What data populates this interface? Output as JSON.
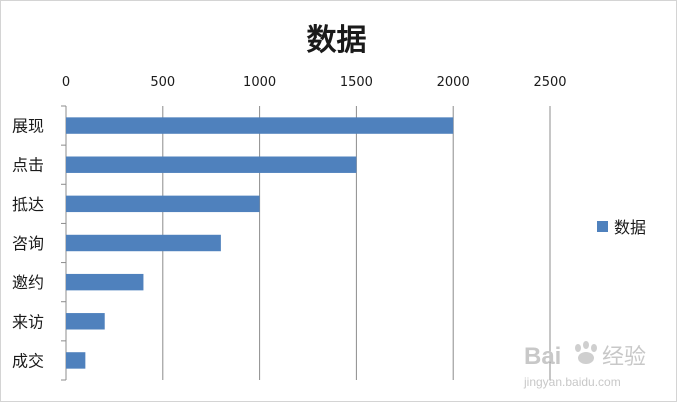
{
  "chart_data": {
    "type": "bar",
    "orientation": "horizontal",
    "title": "数据",
    "categories": [
      "展现",
      "点击",
      "抵达",
      "咨询",
      "邀约",
      "来访",
      "成交"
    ],
    "series": [
      {
        "name": "数据",
        "values": [
          2000,
          1500,
          1000,
          800,
          400,
          200,
          100
        ],
        "color": "#4f81bd"
      }
    ],
    "xlim": [
      0,
      2500
    ],
    "xticks": [
      0,
      500,
      1000,
      1500,
      2000,
      2500
    ],
    "x_axis_position": "top",
    "grid": true,
    "legend": "right"
  },
  "watermark": {
    "brand": "Bai",
    "brand_suffix": "经验",
    "url": "jingyan.baidu.com"
  }
}
